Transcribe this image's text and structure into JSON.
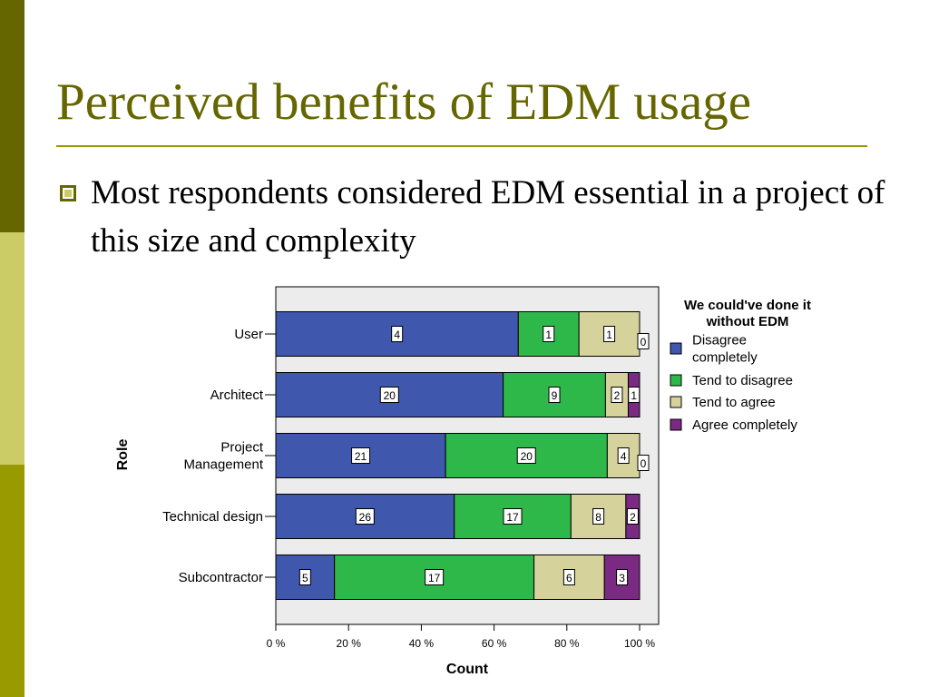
{
  "slide": {
    "title": "Perceived benefits of EDM usage",
    "bullet": "Most respondents considered EDM essential in a project of this size and complexity"
  },
  "colors": {
    "strip_top": "#666600",
    "strip_mid": "#cccc66",
    "strip_bottom": "#999900",
    "title": "#666600",
    "plot_background": "#ececec"
  },
  "chart_data": {
    "type": "bar",
    "orientation": "horizontal",
    "stacked": "percent",
    "categories": [
      "User",
      "Architect",
      "Project Management",
      "Technical design",
      "Subcontractor"
    ],
    "category_lines": [
      [
        "User"
      ],
      [
        "Architect"
      ],
      [
        "Project",
        "Management"
      ],
      [
        "Technical design"
      ],
      [
        "Subcontractor"
      ]
    ],
    "series": [
      {
        "name": "Disagree completely",
        "legend_lines": [
          "Disagree",
          "completely"
        ],
        "color": "#3f57ad",
        "values": [
          4,
          20,
          21,
          26,
          5
        ]
      },
      {
        "name": "Tend to disagree",
        "legend_lines": [
          "Tend to disagree"
        ],
        "color": "#2fb84a",
        "values": [
          1,
          9,
          20,
          17,
          17
        ]
      },
      {
        "name": "Tend to agree",
        "legend_lines": [
          "Tend to agree"
        ],
        "color": "#d6d29c",
        "values": [
          1,
          2,
          4,
          8,
          6
        ]
      },
      {
        "name": "Agree completely",
        "legend_lines": [
          "Agree completely"
        ],
        "color": "#7a2a82",
        "values": [
          0,
          1,
          0,
          2,
          3
        ]
      }
    ],
    "xlabel": "Count",
    "ylabel": "Role",
    "xlim": [
      0,
      100
    ],
    "x_ticks": [
      0,
      20,
      40,
      60,
      80,
      100
    ],
    "x_tick_labels": [
      "0 %",
      "20 %",
      "40 %",
      "60 %",
      "80 %",
      "100 %"
    ],
    "legend_title": [
      "We could've done it",
      "without EDM"
    ],
    "legend_position": "right",
    "grid": false
  }
}
